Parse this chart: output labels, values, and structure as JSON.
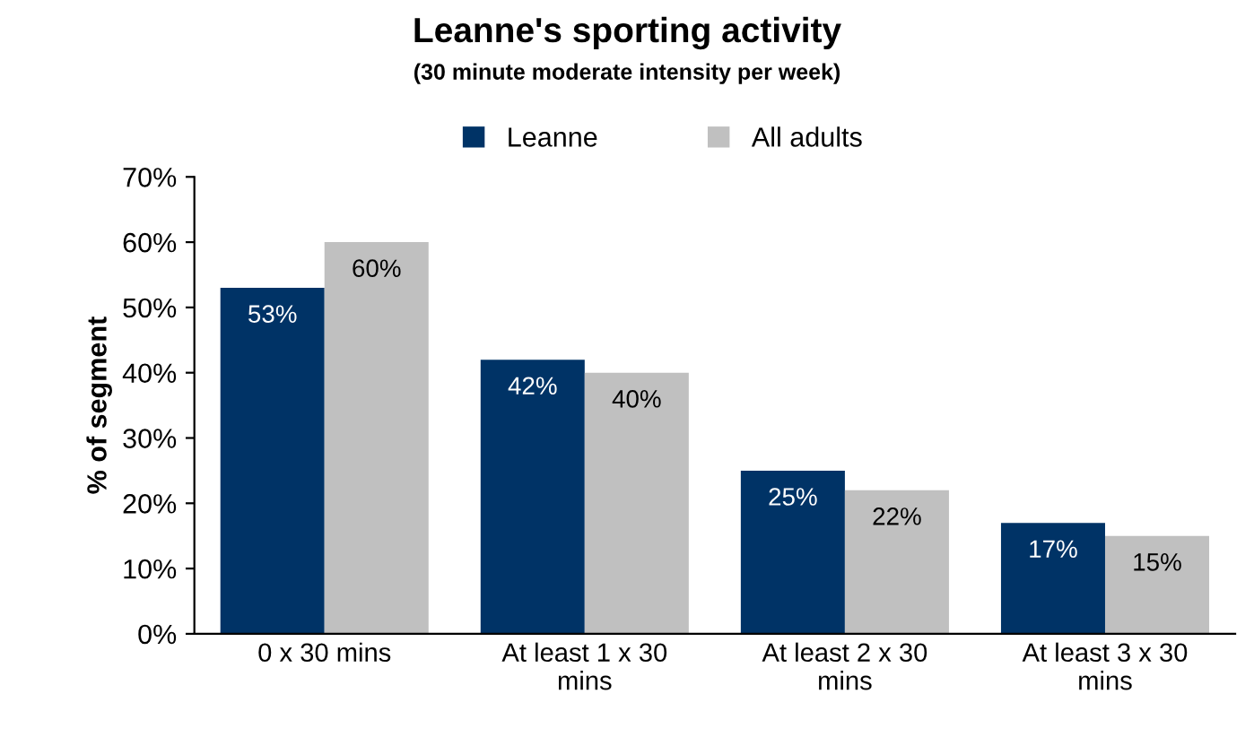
{
  "chart_data": {
    "type": "bar",
    "title": "Leanne's sporting activity",
    "subtitle": "(30 minute moderate intensity per week)",
    "ylabel": "% of segment",
    "categories": [
      "0 x 30 mins",
      "At least 1 x 30 mins",
      "At least 2 x 30 mins",
      "At least 3 x 30 mins"
    ],
    "series": [
      {
        "name": "Leanne",
        "color": "#003366",
        "values": [
          53,
          42,
          25,
          17
        ],
        "value_labels": [
          "53%",
          "42%",
          "25%",
          "17%"
        ]
      },
      {
        "name": "All adults",
        "color": "#c0c0c0",
        "values": [
          60,
          40,
          22,
          15
        ],
        "value_labels": [
          "60%",
          "40%",
          "22%",
          "15%"
        ]
      }
    ],
    "ylim": [
      0,
      70
    ],
    "yticks": [
      {
        "value": 0,
        "label": "0%"
      },
      {
        "value": 10,
        "label": "10%"
      },
      {
        "value": 20,
        "label": "20%"
      },
      {
        "value": 30,
        "label": "30%"
      },
      {
        "value": 40,
        "label": "40%"
      },
      {
        "value": 50,
        "label": "50%"
      },
      {
        "value": 60,
        "label": "60%"
      },
      {
        "value": 70,
        "label": "70%"
      }
    ],
    "legend": "top",
    "grid": false
  }
}
